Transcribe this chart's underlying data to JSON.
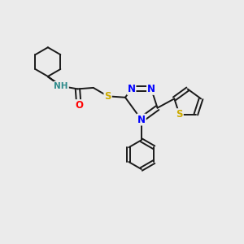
{
  "background_color": "#ebebeb",
  "bond_color": "#1a1a1a",
  "nitrogen_color": "#0000ff",
  "oxygen_color": "#ff0000",
  "sulfur_color": "#ccaa00",
  "hydrogen_color": "#2e8b8b",
  "figsize": [
    3.0,
    3.0
  ],
  "dpi": 100,
  "xlim": [
    0,
    10
  ],
  "ylim": [
    0,
    10
  ]
}
